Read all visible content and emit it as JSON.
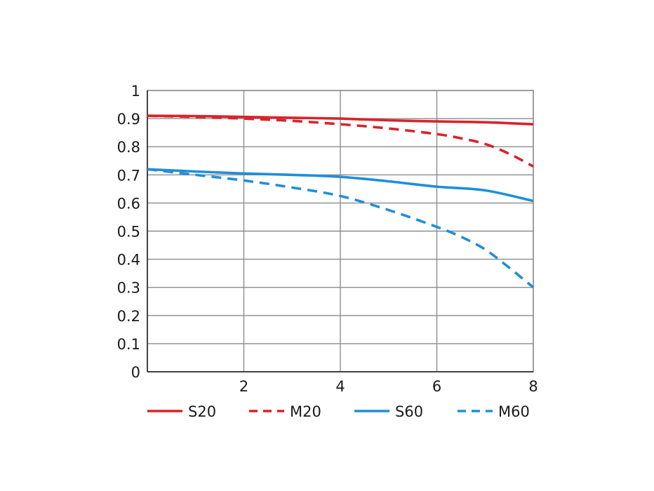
{
  "chart_data": {
    "type": "line",
    "title": "",
    "xlabel": "",
    "ylabel": "",
    "xlim": [
      0,
      8
    ],
    "ylim": [
      0,
      1
    ],
    "grid": true,
    "legend_position": "bottom",
    "x_ticks": [
      "2",
      "4",
      "6",
      "8"
    ],
    "y_ticks": [
      "0",
      "0.1",
      "0.2",
      "0.3",
      "0.4",
      "0.5",
      "0.6",
      "0.7",
      "0.8",
      "0.9",
      "1"
    ],
    "series": [
      {
        "name": "S20",
        "color": "#d9232a",
        "dashed": false,
        "x": [
          0,
          1,
          2,
          3,
          4,
          5,
          6,
          7,
          8
        ],
        "y": [
          0.91,
          0.909,
          0.906,
          0.903,
          0.9,
          0.894,
          0.89,
          0.887,
          0.88
        ]
      },
      {
        "name": "M20",
        "color": "#d9232a",
        "dashed": true,
        "x": [
          0,
          1,
          2,
          3,
          4,
          5,
          6,
          6.5,
          7,
          7.5,
          8
        ],
        "y": [
          0.91,
          0.906,
          0.9,
          0.892,
          0.88,
          0.865,
          0.845,
          0.83,
          0.81,
          0.775,
          0.73
        ]
      },
      {
        "name": "S60",
        "color": "#1f8fd8",
        "dashed": false,
        "x": [
          0,
          1,
          2,
          3,
          4,
          5,
          6,
          7,
          8
        ],
        "y": [
          0.72,
          0.712,
          0.705,
          0.7,
          0.693,
          0.677,
          0.658,
          0.645,
          0.607
        ]
      },
      {
        "name": "M60",
        "color": "#1f8fd8",
        "dashed": true,
        "x": [
          0,
          1,
          2,
          3,
          4,
          5,
          6,
          6.5,
          7,
          7.5,
          8
        ],
        "y": [
          0.72,
          0.7,
          0.68,
          0.655,
          0.625,
          0.575,
          0.515,
          0.48,
          0.435,
          0.37,
          0.3
        ]
      }
    ]
  }
}
